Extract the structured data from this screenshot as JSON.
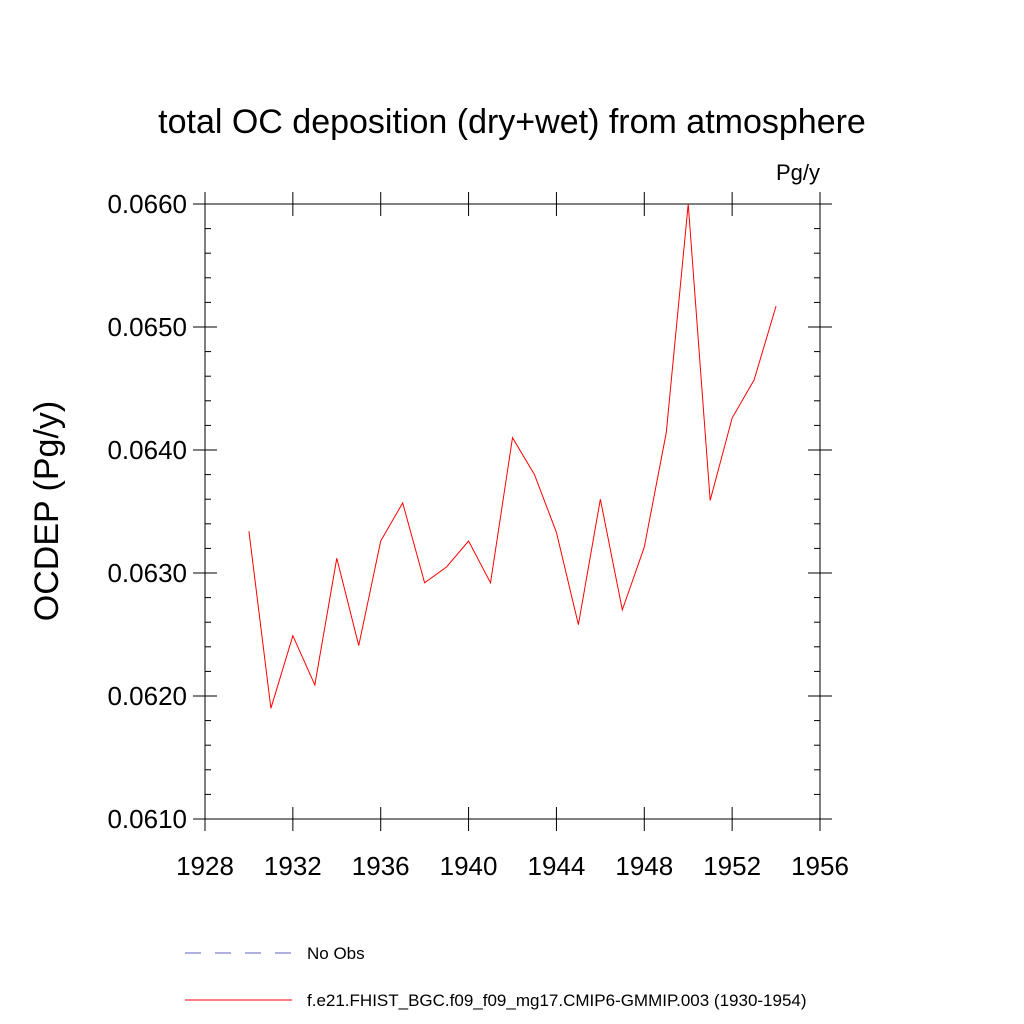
{
  "chart_data": {
    "type": "line",
    "title": "total OC deposition (dry+wet) from atmosphere",
    "units_label": "Pg/y",
    "xlabel": "",
    "ylabel": "OCDEP  (Pg/y)",
    "xlim": [
      1928,
      1956
    ],
    "ylim": [
      0.061,
      0.066
    ],
    "x_ticks": [
      1928,
      1932,
      1936,
      1940,
      1944,
      1948,
      1952,
      1956
    ],
    "x_tick_labels": [
      "1928",
      "1932",
      "1936",
      "1940",
      "1944",
      "1948",
      "1952",
      "1956"
    ],
    "y_ticks": [
      0.061,
      0.062,
      0.063,
      0.064,
      0.065,
      0.066
    ],
    "y_tick_labels": [
      "0.0610",
      "0.0620",
      "0.0630",
      "0.0640",
      "0.0650",
      "0.0660"
    ],
    "grid": false,
    "legend_position": "bottom",
    "series": [
      {
        "name": "f.e21.FHIST_BGC.f09_f09_mg17.CMIP6-GMMIP.003 (1930-1954)",
        "color": "#ff0000",
        "style": "solid",
        "x": [
          1930,
          1931,
          1932,
          1933,
          1934,
          1935,
          1936,
          1937,
          1938,
          1939,
          1940,
          1941,
          1942,
          1943,
          1944,
          1945,
          1946,
          1947,
          1948,
          1949,
          1950,
          1951,
          1952,
          1953,
          1954
        ],
        "y": [
          0.06334,
          0.0619,
          0.06249,
          0.06209,
          0.06312,
          0.06241,
          0.06326,
          0.06357,
          0.06292,
          0.06305,
          0.06326,
          0.06292,
          0.0641,
          0.0638,
          0.06333,
          0.06258,
          0.0636,
          0.0627,
          0.06321,
          0.06414,
          0.066,
          0.06359,
          0.06426,
          0.06457,
          0.06517
        ]
      }
    ],
    "legend": [
      {
        "label": "No Obs",
        "color": "#6060c0",
        "style": "dashed"
      },
      {
        "label": "f.e21.FHIST_BGC.f09_f09_mg17.CMIP6-GMMIP.003 (1930-1954)",
        "color": "#ff0000",
        "style": "solid"
      }
    ]
  }
}
